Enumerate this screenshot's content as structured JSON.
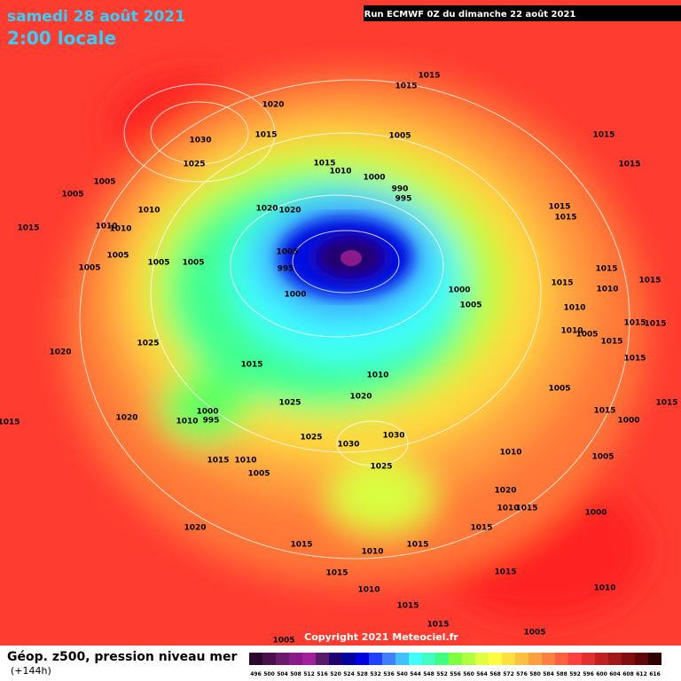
{
  "header": {
    "date": "samedi 28 août 2021",
    "time": "2:00 locale",
    "run": "Run ECMWF 0Z du dimanche 22 août 2021"
  },
  "isobars": [
    "1015",
    "1015",
    "1020",
    "1015",
    "1030",
    "1005",
    "1015",
    "1010",
    "1025",
    "1005",
    "1000",
    "990",
    "995",
    "1005",
    "1010",
    "1020",
    "1020",
    "1015",
    "1010",
    "1010",
    "1005",
    "1005",
    "1005",
    "1005",
    "995",
    "1005",
    "1000",
    "1000",
    "1005",
    "1025",
    "1020",
    "1015",
    "1010",
    "1020",
    "1025",
    "1020",
    "1000",
    "1010",
    "995",
    "1015",
    "1025",
    "1030",
    "1030",
    "1025",
    "1015",
    "1010",
    "1005",
    "1020",
    "1015",
    "1010",
    "1015",
    "1015",
    "1010",
    "1015",
    "1005",
    "1015",
    "1015",
    "1010",
    "1020",
    "1010",
    "1015",
    "1000",
    "1015",
    "1010",
    "1005",
    "1015",
    "1015",
    "1015",
    "1015",
    "1015",
    "1015",
    "1010",
    "1010",
    "1015",
    "1015",
    "1010",
    "1005",
    "1015",
    "1015",
    "1005",
    "1015",
    "1000",
    "1005",
    "1015",
    "1015"
  ],
  "footer": {
    "copyright": "Copyright 2021 Meteociel.fr",
    "title": "Géop. z500, pression niveau mer",
    "offset": "(+144h)"
  },
  "scale": {
    "labels": [
      496,
      500,
      504,
      508,
      512,
      516,
      520,
      524,
      528,
      532,
      536,
      540,
      544,
      548,
      552,
      556,
      560,
      564,
      568,
      572,
      576,
      580,
      584,
      588,
      592,
      596,
      600,
      604,
      608,
      612,
      616
    ],
    "colors": [
      "#2a0a2a",
      "#4a104a",
      "#6a1a6a",
      "#8a1a8a",
      "#a020a0",
      "#5a1a6a",
      "#200070",
      "#0000a0",
      "#0000e0",
      "#2040ff",
      "#4080ff",
      "#40c0ff",
      "#40ffff",
      "#40ffc0",
      "#40ff80",
      "#80ff40",
      "#b0ff40",
      "#e0ff40",
      "#ffff40",
      "#ffe040",
      "#ffc040",
      "#ffa040",
      "#ff8040",
      "#ff6040",
      "#ff4040",
      "#e03030",
      "#c02020",
      "#a01818",
      "#801010",
      "#600808",
      "#300000"
    ]
  }
}
